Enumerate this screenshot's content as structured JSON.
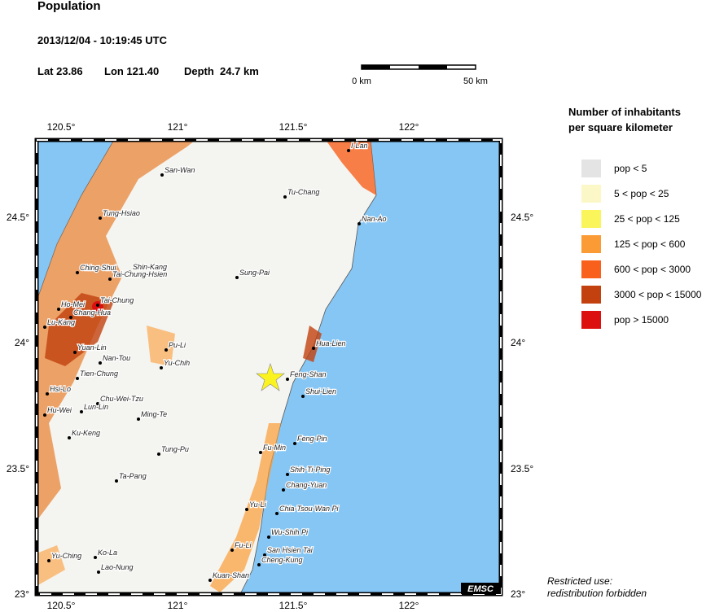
{
  "header": {
    "title": "Population",
    "datetime": "2013/12/04 - 10:19:45 UTC",
    "lat": "Lat 23.86",
    "lon": "Lon 121.40",
    "depth": "Depth  24.7 km"
  },
  "scale": {
    "start": "0 km",
    "end": "50 km"
  },
  "map": {
    "lon_ticks": [
      "120.5°",
      "121°",
      "121.5°",
      "122°"
    ],
    "lat_ticks": [
      "24.5°",
      "24°",
      "23.5°",
      "23°"
    ],
    "credit": "EMSC",
    "cities": [
      {
        "name": "I-Lan"
      },
      {
        "name": "San-Wan"
      },
      {
        "name": "Tu-Chang"
      },
      {
        "name": "Tung-Hsiao"
      },
      {
        "name": "Nan-Ao"
      },
      {
        "name": "Sung-Pai"
      },
      {
        "name": "Ching-Shui"
      },
      {
        "name": "Shin-Kang"
      },
      {
        "name": "Tai-Chung-Hsien"
      },
      {
        "name": "Tai-Chung"
      },
      {
        "name": "Ho-Mei"
      },
      {
        "name": "Chang-Hua"
      },
      {
        "name": "Lu-Kang"
      },
      {
        "name": "Pu-Li"
      },
      {
        "name": "Yuan-Lin"
      },
      {
        "name": "Nan-Tou"
      },
      {
        "name": "Yu-Chih"
      },
      {
        "name": "Hua-Lien"
      },
      {
        "name": "Tien-Chung"
      },
      {
        "name": "Feng-Shan"
      },
      {
        "name": "Hsi-Lo"
      },
      {
        "name": "Shui-Lien"
      },
      {
        "name": "Chu-Wei-Tzu"
      },
      {
        "name": "Hu-Wei"
      },
      {
        "name": "Lun-Lin"
      },
      {
        "name": "Ming-Te"
      },
      {
        "name": "Ku-Keng"
      },
      {
        "name": "Feng-Pin"
      },
      {
        "name": "Fu-Min"
      },
      {
        "name": "Tung-Pu"
      },
      {
        "name": "Shih-Ti-Ping"
      },
      {
        "name": "Ta-Pang"
      },
      {
        "name": "Chang-Yuan"
      },
      {
        "name": "Yu-Li"
      },
      {
        "name": "Chia-Tsou-Wan Pi"
      },
      {
        "name": "Wu-Shih Pi"
      },
      {
        "name": "Ko-La"
      },
      {
        "name": "San Hsien Tai"
      },
      {
        "name": "Fu-Li"
      },
      {
        "name": "Yu-Ching"
      },
      {
        "name": "Cheng-Kung"
      },
      {
        "name": "Lao-Nung"
      },
      {
        "name": "Kuan-Shan"
      }
    ]
  },
  "legend": {
    "title_line1": "Number of inhabitants",
    "title_line2": "per square kilometer",
    "items": [
      {
        "label": "pop < 5",
        "color": "#e4e4e4"
      },
      {
        "label": "5 < pop < 25",
        "color": "#fbf7c6"
      },
      {
        "label": "25 < pop < 125",
        "color": "#f9f55a"
      },
      {
        "label": "125 < pop < 600",
        "color": "#fb9b35"
      },
      {
        "label": "600 < pop < 3000",
        "color": "#f8601c"
      },
      {
        "label": "3000 < pop < 15000",
        "color": "#c2410f"
      },
      {
        "label": "pop > 15000",
        "color": "#dd1010"
      }
    ]
  },
  "footer": {
    "line1": "Restricted use:",
    "line2": "redistribution forbidden"
  }
}
